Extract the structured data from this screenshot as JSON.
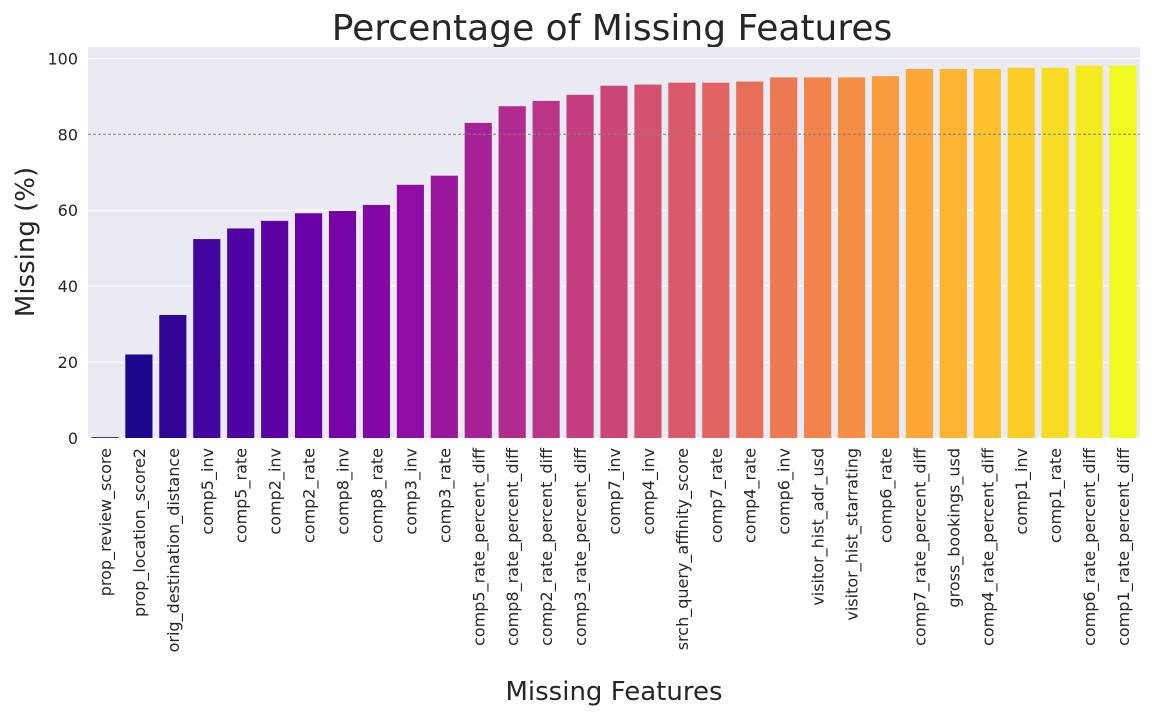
{
  "chart_data": {
    "type": "bar",
    "title": "Percentage of Missing Features",
    "xlabel": "Missing Features",
    "ylabel": "Missing (%)",
    "ylim": [
      0,
      103
    ],
    "yticks": [
      0,
      20,
      40,
      60,
      80,
      100
    ],
    "reference_line": 80,
    "grid": true,
    "categories": [
      "prop_review_score",
      "prop_location_score2",
      "orig_destination_distance",
      "comp5_inv",
      "comp5_rate",
      "comp2_inv",
      "comp2_rate",
      "comp8_inv",
      "comp8_rate",
      "comp3_inv",
      "comp3_rate",
      "comp5_rate_percent_diff",
      "comp8_rate_percent_diff",
      "comp2_rate_percent_diff",
      "comp3_rate_percent_diff",
      "comp7_inv",
      "comp4_inv",
      "srch_query_affinity_score",
      "comp7_rate",
      "comp4_rate",
      "comp6_inv",
      "visitor_hist_adr_usd",
      "visitor_hist_starrating",
      "comp6_rate",
      "comp7_rate_percent_diff",
      "gross_bookings_usd",
      "comp4_rate_percent_diff",
      "comp1_inv",
      "comp1_rate",
      "comp6_rate_percent_diff",
      "comp1_rate_percent_diff"
    ],
    "values": [
      0.2,
      22.0,
      32.4,
      52.4,
      55.2,
      57.2,
      59.2,
      59.8,
      61.4,
      66.7,
      69.1,
      83.0,
      87.4,
      88.8,
      90.4,
      92.8,
      93.1,
      93.6,
      93.6,
      93.9,
      95.0,
      95.0,
      95.0,
      95.3,
      97.2,
      97.2,
      97.2,
      97.5,
      97.5,
      98.1,
      98.1
    ],
    "palette": "plasma",
    "background_color": "#eaeaf2",
    "grid_color": "#ffffff",
    "reference_line_color": "#808080"
  }
}
